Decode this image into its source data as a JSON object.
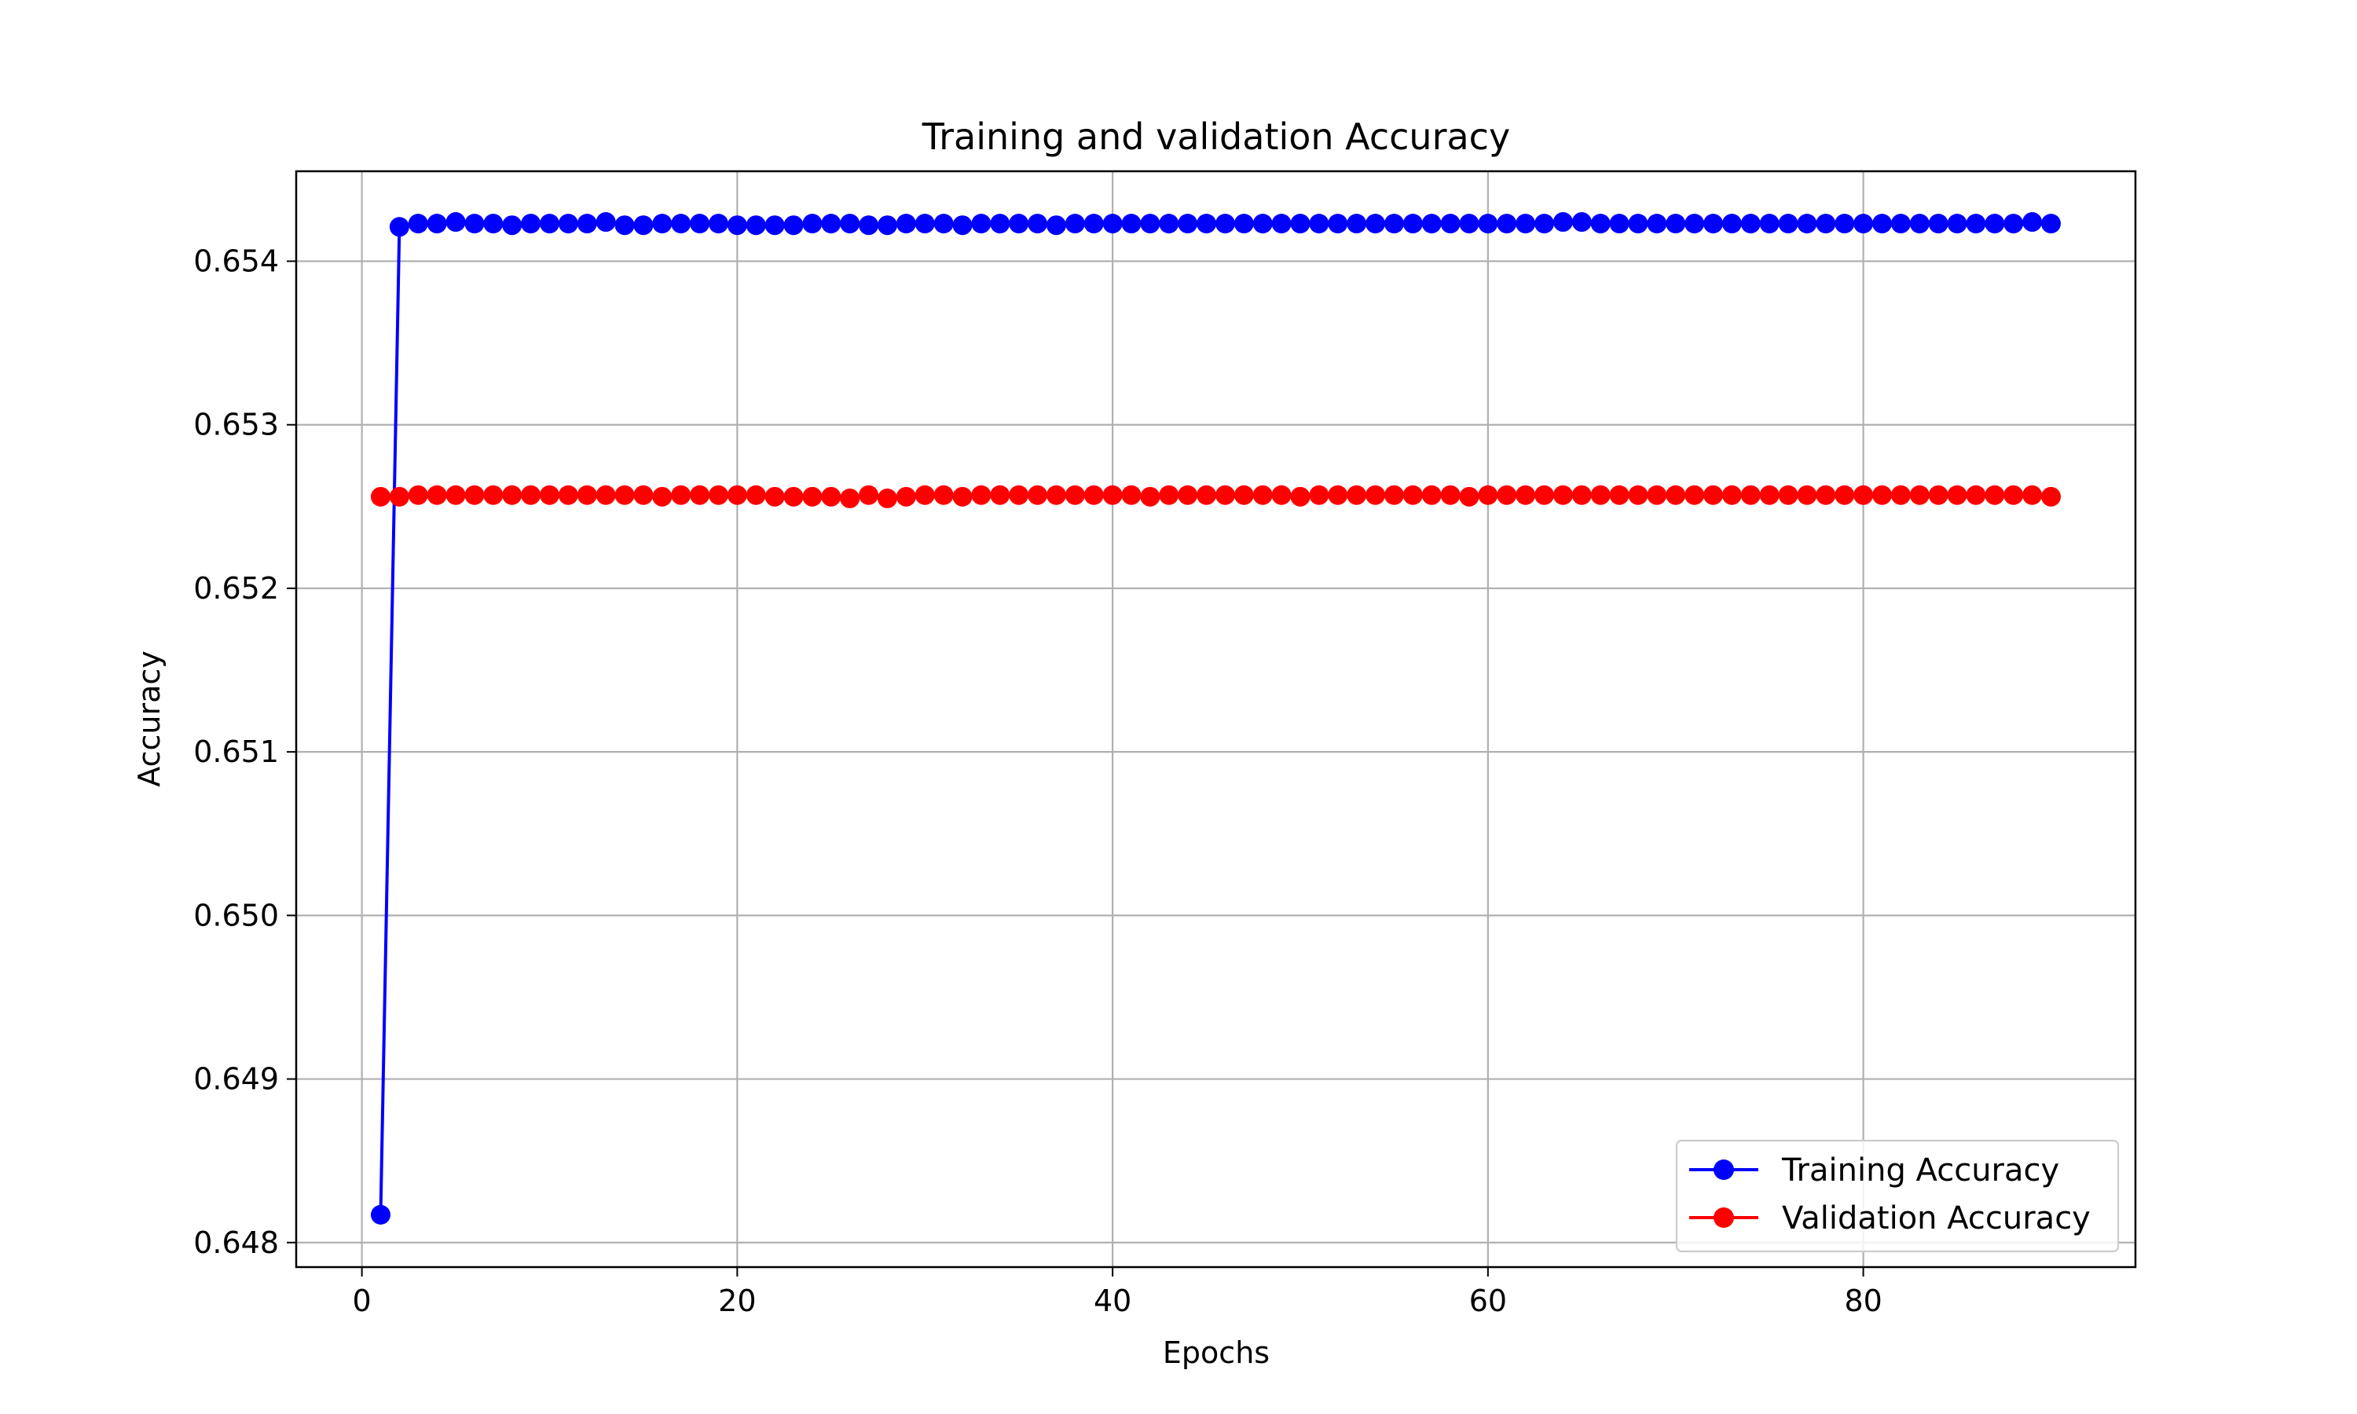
{
  "chart_data": {
    "type": "line",
    "title": "Training and validation Accuracy",
    "xlabel": "Epochs",
    "ylabel": "Accuracy",
    "xlim": [
      -3.5,
      94.5
    ],
    "ylim": [
      0.64785,
      0.65455
    ],
    "xticks": [
      0,
      20,
      40,
      60,
      80
    ],
    "yticks": [
      0.648,
      0.649,
      0.65,
      0.651,
      0.652,
      0.653,
      0.654
    ],
    "ytick_decimals": 3,
    "grid": true,
    "legend_position": "lower-right",
    "x": [
      1,
      2,
      3,
      4,
      5,
      6,
      7,
      8,
      9,
      10,
      11,
      12,
      13,
      14,
      15,
      16,
      17,
      18,
      19,
      20,
      21,
      22,
      23,
      24,
      25,
      26,
      27,
      28,
      29,
      30,
      31,
      32,
      33,
      34,
      35,
      36,
      37,
      38,
      39,
      40,
      41,
      42,
      43,
      44,
      45,
      46,
      47,
      48,
      49,
      50,
      51,
      52,
      53,
      54,
      55,
      56,
      57,
      58,
      59,
      60,
      61,
      62,
      63,
      64,
      65,
      66,
      67,
      68,
      69,
      70,
      71,
      72,
      73,
      74,
      75,
      76,
      77,
      78,
      79,
      80,
      81,
      82,
      83,
      84,
      85,
      86,
      87,
      88,
      89,
      90
    ],
    "series": [
      {
        "name": "Training Accuracy",
        "color": "#0000ff",
        "marker": "circle",
        "values": [
          0.64817,
          0.65421,
          0.65423,
          0.65423,
          0.65424,
          0.65423,
          0.65423,
          0.65422,
          0.65423,
          0.65423,
          0.65423,
          0.65423,
          0.65424,
          0.65422,
          0.65422,
          0.65423,
          0.65423,
          0.65423,
          0.65423,
          0.65422,
          0.65422,
          0.65422,
          0.65422,
          0.65423,
          0.65423,
          0.65423,
          0.65422,
          0.65422,
          0.65423,
          0.65423,
          0.65423,
          0.65422,
          0.65423,
          0.65423,
          0.65423,
          0.65423,
          0.65422,
          0.65423,
          0.65423,
          0.65423,
          0.65423,
          0.65423,
          0.65423,
          0.65423,
          0.65423,
          0.65423,
          0.65423,
          0.65423,
          0.65423,
          0.65423,
          0.65423,
          0.65423,
          0.65423,
          0.65423,
          0.65423,
          0.65423,
          0.65423,
          0.65423,
          0.65423,
          0.65423,
          0.65423,
          0.65423,
          0.65423,
          0.65424,
          0.65424,
          0.65423,
          0.65423,
          0.65423,
          0.65423,
          0.65423,
          0.65423,
          0.65423,
          0.65423,
          0.65423,
          0.65423,
          0.65423,
          0.65423,
          0.65423,
          0.65423,
          0.65423,
          0.65423,
          0.65423,
          0.65423,
          0.65423,
          0.65423,
          0.65423,
          0.65423,
          0.65423,
          0.65424,
          0.65423
        ]
      },
      {
        "name": "Validation Accuracy",
        "color": "#ff0000",
        "marker": "circle",
        "values": [
          0.65256,
          0.65256,
          0.65257,
          0.65257,
          0.65257,
          0.65257,
          0.65257,
          0.65257,
          0.65257,
          0.65257,
          0.65257,
          0.65257,
          0.65257,
          0.65257,
          0.65257,
          0.65256,
          0.65257,
          0.65257,
          0.65257,
          0.65257,
          0.65257,
          0.65256,
          0.65256,
          0.65256,
          0.65256,
          0.65255,
          0.65257,
          0.65255,
          0.65256,
          0.65257,
          0.65257,
          0.65256,
          0.65257,
          0.65257,
          0.65257,
          0.65257,
          0.65257,
          0.65257,
          0.65257,
          0.65257,
          0.65257,
          0.65256,
          0.65257,
          0.65257,
          0.65257,
          0.65257,
          0.65257,
          0.65257,
          0.65257,
          0.65256,
          0.65257,
          0.65257,
          0.65257,
          0.65257,
          0.65257,
          0.65257,
          0.65257,
          0.65257,
          0.65256,
          0.65257,
          0.65257,
          0.65257,
          0.65257,
          0.65257,
          0.65257,
          0.65257,
          0.65257,
          0.65257,
          0.65257,
          0.65257,
          0.65257,
          0.65257,
          0.65257,
          0.65257,
          0.65257,
          0.65257,
          0.65257,
          0.65257,
          0.65257,
          0.65257,
          0.65257,
          0.65257,
          0.65257,
          0.65257,
          0.65257,
          0.65257,
          0.65257,
          0.65257,
          0.65257,
          0.65256
        ]
      }
    ]
  }
}
